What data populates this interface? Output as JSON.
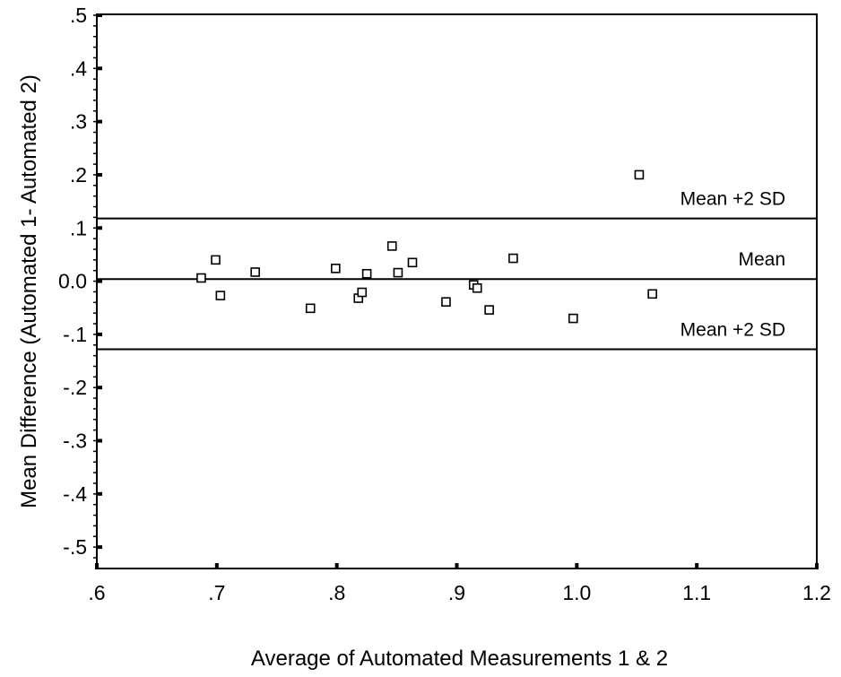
{
  "chart_data": {
    "type": "scatter",
    "title": "",
    "xlabel": "Average of Automated Measurements 1 & 2",
    "ylabel": "Mean Difference (Automated 1- Automated 2)",
    "xlim": [
      0.6,
      1.2
    ],
    "ylim": [
      -0.52,
      0.5
    ],
    "x_ticks": [
      {
        "value": 0.6,
        "label": ".6"
      },
      {
        "value": 0.7,
        "label": ".7"
      },
      {
        "value": 0.8,
        "label": ".8"
      },
      {
        "value": 0.9,
        "label": ".9"
      },
      {
        "value": 1.0,
        "label": "1.0"
      },
      {
        "value": 1.1,
        "label": "1.1"
      },
      {
        "value": 1.2,
        "label": "1.2"
      }
    ],
    "y_ticks": [
      {
        "value": 0.5,
        "label": ".5"
      },
      {
        "value": 0.4,
        "label": ".4"
      },
      {
        "value": 0.3,
        "label": ".3"
      },
      {
        "value": 0.2,
        "label": ".2"
      },
      {
        "value": 0.1,
        "label": ".1"
      },
      {
        "value": 0.0,
        "label": "0.0"
      },
      {
        "value": -0.1,
        "label": "-.1"
      },
      {
        "value": -0.2,
        "label": "-.2"
      },
      {
        "value": -0.3,
        "label": "-.3"
      },
      {
        "value": -0.4,
        "label": "-.4"
      },
      {
        "value": -0.5,
        "label": "-.5"
      }
    ],
    "grid": false,
    "marker": "open-square",
    "points": [
      {
        "x": 0.687,
        "y": 0.006
      },
      {
        "x": 0.699,
        "y": 0.04
      },
      {
        "x": 0.703,
        "y": -0.027
      },
      {
        "x": 0.732,
        "y": 0.017
      },
      {
        "x": 0.778,
        "y": -0.051
      },
      {
        "x": 0.799,
        "y": 0.024
      },
      {
        "x": 0.818,
        "y": -0.032
      },
      {
        "x": 0.821,
        "y": -0.021
      },
      {
        "x": 0.825,
        "y": 0.014
      },
      {
        "x": 0.846,
        "y": 0.066
      },
      {
        "x": 0.851,
        "y": 0.016
      },
      {
        "x": 0.863,
        "y": 0.035
      },
      {
        "x": 0.891,
        "y": -0.039
      },
      {
        "x": 0.914,
        "y": -0.007
      },
      {
        "x": 0.917,
        "y": -0.013
      },
      {
        "x": 0.927,
        "y": -0.054
      },
      {
        "x": 0.947,
        "y": 0.043
      },
      {
        "x": 0.997,
        "y": -0.07
      },
      {
        "x": 1.052,
        "y": 0.2
      },
      {
        "x": 1.063,
        "y": -0.024
      }
    ],
    "reference_lines": [
      {
        "name": "upper",
        "y": 0.118,
        "label": "Mean +2 SD"
      },
      {
        "name": "mean",
        "y": 0.004,
        "label": "Mean"
      },
      {
        "name": "lower",
        "y": -0.128,
        "label": "Mean +2 SD"
      }
    ]
  }
}
